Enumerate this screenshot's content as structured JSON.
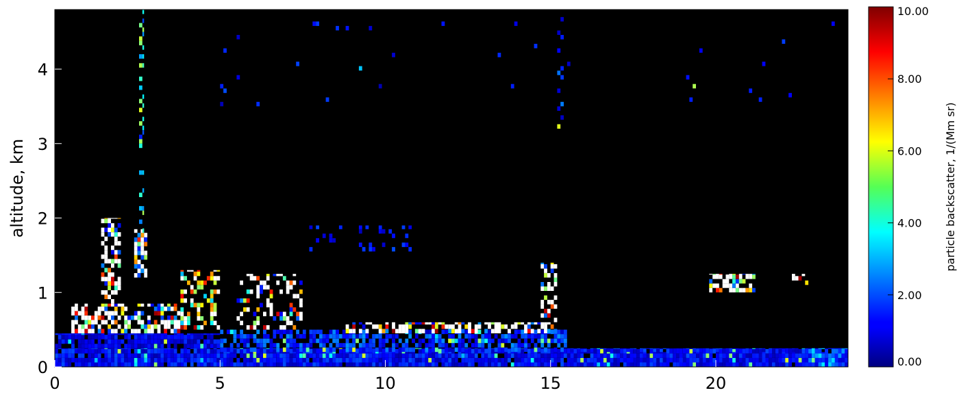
{
  "chart_data": {
    "type": "heatmap",
    "title": "",
    "xlabel": "",
    "ylabel": "altitude, km",
    "xlim": [
      0,
      24
    ],
    "ylim": [
      0,
      4.8
    ],
    "x_ticks": [
      0,
      5,
      10,
      15,
      20
    ],
    "y_ticks": [
      0,
      1,
      2,
      3,
      4
    ],
    "colorbar": {
      "label": "particle backscatter, 1/(Mm sr)",
      "range": [
        0,
        10
      ],
      "ticks": [
        "0.00",
        "2.00",
        "4.00",
        "6.00",
        "8.00",
        "10.00"
      ],
      "colormap": "jet",
      "saturation_color": "#ffffff"
    },
    "background_color": "#000000",
    "regions": [
      {
        "x": [
          0,
          24
        ],
        "y": [
          0,
          0.25
        ],
        "level": 1.2,
        "density": 0.95
      },
      {
        "x": [
          0,
          5
        ],
        "y": [
          0.25,
          0.45
        ],
        "level": 1.0,
        "density": 0.85
      },
      {
        "x": [
          5,
          15.5
        ],
        "y": [
          0.2,
          0.5
        ],
        "level": 1.6,
        "density": 0.65
      },
      {
        "x": [
          15.5,
          24
        ],
        "y": [
          0,
          0.2
        ],
        "level": 1.0,
        "density": 0.35
      },
      {
        "x": [
          0.5,
          3.8
        ],
        "y": [
          0.45,
          0.85
        ],
        "level": 10.5,
        "density": 0.6
      },
      {
        "x": [
          1.4,
          2.0
        ],
        "y": [
          0.85,
          2.0
        ],
        "level": 10.5,
        "density": 0.5
      },
      {
        "x": [
          2.4,
          2.8
        ],
        "y": [
          1.2,
          1.85
        ],
        "level": 10.5,
        "density": 0.75
      },
      {
        "x": [
          3.8,
          5
        ],
        "y": [
          0.5,
          1.3
        ],
        "level": 8,
        "density": 0.45
      },
      {
        "x": [
          5.5,
          7.5
        ],
        "y": [
          0.5,
          1.25
        ],
        "level": 10.5,
        "density": 0.3
      },
      {
        "x": [
          8.8,
          15.2
        ],
        "y": [
          0.45,
          0.6
        ],
        "level": 10.5,
        "density": 0.55
      },
      {
        "x": [
          14.7,
          15.2
        ],
        "y": [
          0.6,
          1.4
        ],
        "level": 10.5,
        "density": 0.5
      },
      {
        "x": [
          7.5,
          11
        ],
        "y": [
          1.55,
          1.9
        ],
        "level": 1.2,
        "density": 0.12
      },
      {
        "x": [
          19.8,
          21.2
        ],
        "y": [
          1.0,
          1.25
        ],
        "level": 10.5,
        "density": 0.7
      },
      {
        "x": [
          22.3,
          22.8
        ],
        "y": [
          1.1,
          1.25
        ],
        "level": 10.5,
        "density": 0.5
      },
      {
        "x": [
          22.8,
          24
        ],
        "y": [
          0,
          0.25
        ],
        "level": 2.2,
        "density": 0.8
      },
      {
        "x": [
          2.55,
          2.7
        ],
        "y": [
          1.8,
          4.8
        ],
        "level": 3.5,
        "density": 0.35
      },
      {
        "x": [
          15.2,
          15.4
        ],
        "y": [
          3.2,
          4.8
        ],
        "level": 1.5,
        "density": 0.1
      },
      {
        "x": [
          5,
          24
        ],
        "y": [
          3.5,
          4.7
        ],
        "level": 1.2,
        "density": 0.01
      }
    ]
  }
}
